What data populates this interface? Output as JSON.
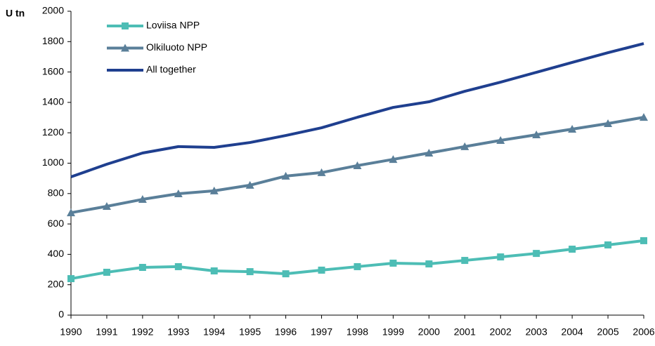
{
  "chart_data": {
    "type": "line",
    "y_label": "U tn",
    "x": [
      "1990",
      "1991",
      "1992",
      "1993",
      "1994",
      "1995",
      "1996",
      "1997",
      "1998",
      "1999",
      "2000",
      "2001",
      "2002",
      "2003",
      "2004",
      "2005",
      "2006"
    ],
    "series": [
      {
        "name": "Loviisa NPP",
        "color": "#4dbdb5",
        "marker": "square",
        "values": [
          240,
          282,
          314,
          319,
          291,
          286,
          272,
          296,
          319,
          342,
          337,
          360,
          383,
          406,
          434,
          462,
          490
        ]
      },
      {
        "name": "Olkiluoto NPP",
        "color": "#5a7f99",
        "marker": "triangle",
        "values": [
          674,
          716,
          762,
          799,
          818,
          855,
          915,
          938,
          984,
          1025,
          1067,
          1109,
          1150,
          1187,
          1224,
          1261,
          1302
        ]
      },
      {
        "name": "All together",
        "color": "#1f3f8f",
        "marker": "none",
        "values": [
          910,
          993,
          1067,
          1109,
          1104,
          1136,
          1182,
          1233,
          1302,
          1367,
          1404,
          1473,
          1533,
          1598,
          1663,
          1727,
          1787
        ]
      }
    ],
    "ylim": [
      0,
      2000
    ],
    "yticks": [
      0,
      200,
      400,
      600,
      800,
      1000,
      1200,
      1400,
      1600,
      1800,
      2000
    ],
    "grid": false,
    "legend": "top-left"
  }
}
